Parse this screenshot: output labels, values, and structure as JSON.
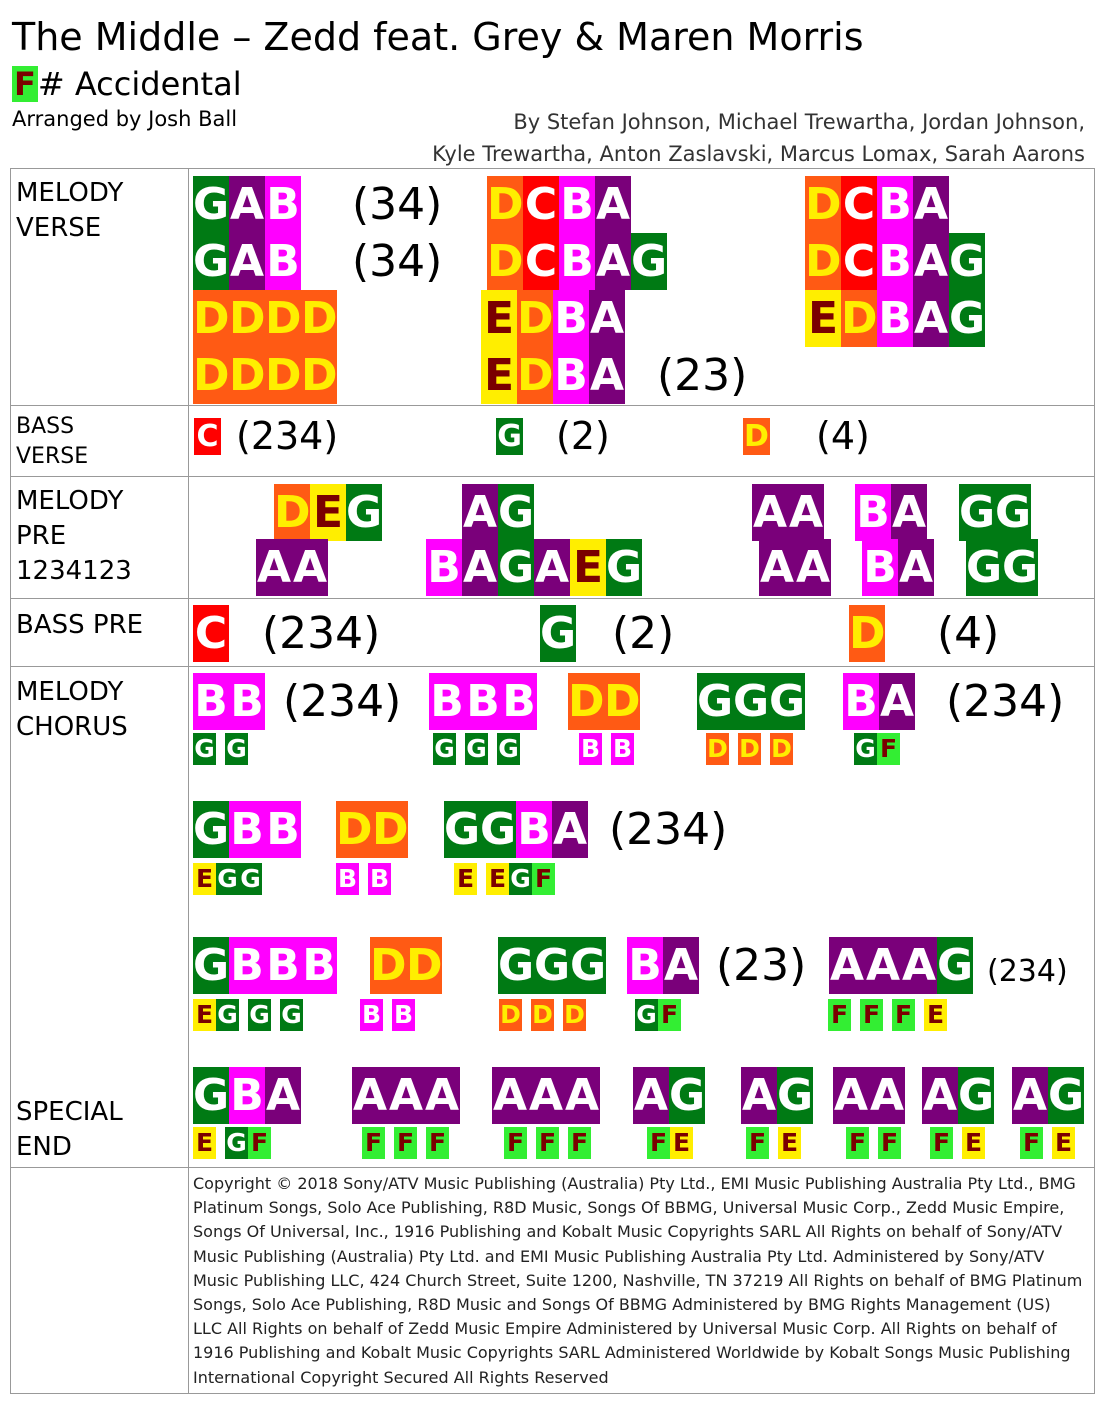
{
  "header": {
    "title": "The Middle – Zedd feat. Grey & Maren Morris",
    "accidental_letter": "F",
    "accidental_rest": "# Accidental",
    "arranger": "Arranged by Josh Ball",
    "credits_line1": "By Stefan Johnson, Michael Trewartha, Jordan Johnson,",
    "credits_line2": "Kyle Trewartha, Anton Zaslavski, Marcus Lomax, Sarah Aarons"
  },
  "note_colors": {
    "G": "#007a14",
    "A": "#7a007a",
    "B": "#ff00ff",
    "D": "#ff5a14",
    "C": "#ff0000",
    "E": "#ffee00",
    "F": "#33ee33"
  },
  "sections": {
    "melody_verse": "MELODY\nVERSE",
    "bass_verse": "BASS\nVERSE",
    "melody_pre": "MELODY\nPRE\n1234123",
    "bass_pre": "BASS PRE",
    "melody_chorus": "MELODY\nCHORUS",
    "special_end": "SPECIAL\nEND"
  },
  "groups": [
    {
      "notes": "GAB",
      "size": "big"
    },
    {
      "notes": "GAB",
      "size": "big"
    },
    {
      "notes": "DDDD",
      "size": "big"
    },
    {
      "notes": "DDDD",
      "size": "big"
    },
    {
      "notes": "DCBA",
      "size": "big"
    },
    {
      "notes": "DCBAG",
      "size": "big"
    },
    {
      "notes": "EDBA",
      "size": "big"
    },
    {
      "notes": "EDBA",
      "size": "big"
    },
    {
      "notes": "DCBA",
      "size": "big"
    },
    {
      "notes": "DCBAG",
      "size": "big"
    },
    {
      "notes": "EDBAG",
      "size": "big"
    },
    {
      "notes": "C",
      "size": "mid"
    },
    {
      "notes": "G",
      "size": "mid"
    },
    {
      "notes": "D",
      "size": "mid"
    },
    {
      "notes": "DEG",
      "size": "big"
    },
    {
      "notes": "AA",
      "size": "big"
    },
    {
      "notes": "AG",
      "size": "big"
    },
    {
      "notes": "BAGAEG",
      "size": "big"
    },
    {
      "notes": "AA",
      "size": "big"
    },
    {
      "notes": "AA",
      "size": "big"
    },
    {
      "notes": "BA",
      "size": "big"
    },
    {
      "notes": "BA",
      "size": "big"
    },
    {
      "notes": "GG",
      "size": "big"
    },
    {
      "notes": "GG",
      "size": "big"
    },
    {
      "notes": "C",
      "size": "big"
    },
    {
      "notes": "G",
      "size": "big"
    },
    {
      "notes": "D",
      "size": "big"
    },
    {
      "notes": "BB",
      "size": "big"
    },
    {
      "notes": "G G",
      "size": "sm"
    },
    {
      "notes": "BBB",
      "size": "big"
    },
    {
      "notes": "G G G",
      "size": "sm"
    },
    {
      "notes": "DD",
      "size": "big"
    },
    {
      "notes": "B B",
      "size": "sm"
    },
    {
      "notes": "GGG",
      "size": "big"
    },
    {
      "notes": "D D D",
      "size": "sm"
    },
    {
      "notes": "BA",
      "size": "big"
    },
    {
      "notes": "GF",
      "size": "sm"
    },
    {
      "notes": "GBB",
      "size": "big"
    },
    {
      "notes": "EGG",
      "size": "sm"
    },
    {
      "notes": "DD",
      "size": "big"
    },
    {
      "notes": "B B",
      "size": "sm"
    },
    {
      "notes": "GGBA",
      "size": "big"
    },
    {
      "notes": "E EGF",
      "size": "sm"
    },
    {
      "notes": "GBBB",
      "size": "big"
    },
    {
      "notes": "EG G G",
      "size": "sm"
    },
    {
      "notes": "DD",
      "size": "big"
    },
    {
      "notes": "B B",
      "size": "sm"
    },
    {
      "notes": "GGG",
      "size": "big"
    },
    {
      "notes": "D D D",
      "size": "sm"
    },
    {
      "notes": "BA",
      "size": "big"
    },
    {
      "notes": "GF",
      "size": "sm"
    },
    {
      "notes": "AAAG",
      "size": "big"
    },
    {
      "notes": "F F F E",
      "size": "sm"
    },
    {
      "notes": "GBA",
      "size": "big"
    },
    {
      "notes": "E GF",
      "size": "sm"
    },
    {
      "notes": "AAA",
      "size": "big"
    },
    {
      "notes": "F F F",
      "size": "sm"
    },
    {
      "notes": "AAA",
      "size": "big"
    },
    {
      "notes": "F F F",
      "size": "sm"
    },
    {
      "notes": "AG",
      "size": "big"
    },
    {
      "notes": "FE",
      "size": "sm"
    },
    {
      "notes": "AG",
      "size": "big"
    },
    {
      "notes": "F E",
      "size": "sm"
    },
    {
      "notes": "AA",
      "size": "big"
    },
    {
      "notes": "F F",
      "size": "sm"
    },
    {
      "notes": "AG",
      "size": "big"
    },
    {
      "notes": "F E",
      "size": "sm"
    },
    {
      "notes": "AG",
      "size": "big"
    },
    {
      "notes": "F E",
      "size": "sm"
    }
  ],
  "counts": {
    "verse_1": "(34)",
    "verse_2": "(34)",
    "verse_3": "(23)",
    "bass_verse_1": "(234)",
    "bass_verse_2": "(2)",
    "bass_verse_3": "(4)",
    "bass_pre_1": "(234)",
    "bass_pre_2": "(2)",
    "bass_pre_3": "(4)",
    "chorus_1": "(234)",
    "chorus_2": "(234)",
    "chorus_3": "(234)",
    "chorus_4": "(23)",
    "chorus_5": "(234)"
  },
  "copyright": "Copyright © 2018 Sony/ATV Music Publishing (Australia) Pty Ltd., EMI Music Publishing Australia Pty Ltd., BMG Platinum Songs, Solo Ace Publishing, R8D Music, Songs Of BBMG, Universal Music Corp., Zedd Music Empire, Songs Of Universal, Inc., 1916 Publishing and Kobalt Music Copyrights SARL All Rights on behalf of Sony/ATV Music Publishing (Australia) Pty Ltd. and EMI Music Publishing Australia Pty Ltd. Administered by Sony/ATV Music Publishing LLC, 424 Church Street, Suite 1200, Nashville, TN 37219 All Rights on behalf of BMG Platinum Songs, Solo Ace Publishing, R8D Music and Songs Of BBMG Administered by BMG Rights Management (US) LLC All Rights on behalf of Zedd Music Empire Administered by Universal Music Corp. All Rights on behalf of 1916 Publishing and Kobalt Music Copyrights SARL Administered Worldwide by Kobalt Songs Music Publishing International Copyright Secured All Rights Reserved"
}
